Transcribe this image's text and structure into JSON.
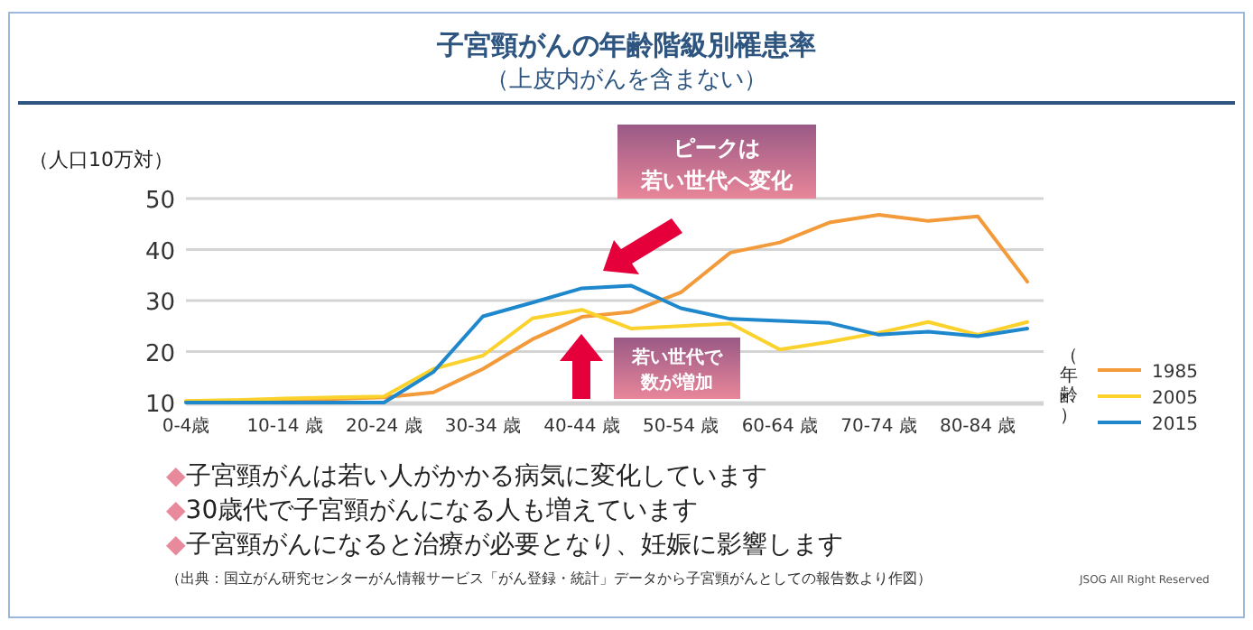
{
  "chart_data": {
    "type": "line",
    "title": "子宮頸がんの年齢階級別罹患率",
    "subtitle": "（上皮内がんを含まない）",
    "ylabel": "（人口10万対）",
    "xlabel": "（年齢）",
    "categories": [
      "0-4歳",
      null,
      "10-14 歳",
      null,
      "20-24 歳",
      null,
      "30-34 歳",
      null,
      "40-44 歳",
      null,
      "50-54 歳",
      null,
      "60-64 歳",
      null,
      "70-74 歳",
      null,
      "80-84 歳",
      null
    ],
    "series": [
      {
        "name": "1985",
        "color": "#f39a3a",
        "values": [
          10.2,
          10.3,
          10.5,
          10.7,
          11,
          12,
          16.6,
          22.4,
          26.8,
          27.8,
          31.6,
          39.4,
          41.4,
          45.3,
          46.8,
          45.6,
          46.5,
          33.7
        ]
      },
      {
        "name": "2005",
        "color": "#fbd12b",
        "values": [
          10.3,
          10.5,
          10.8,
          11,
          11.2,
          16.6,
          19.2,
          26.5,
          28.2,
          24.5,
          25,
          25.5,
          20.4,
          21.9,
          23.7,
          25.8,
          23.3,
          25.8
        ]
      },
      {
        "name": "2015",
        "color": "#1f88cc",
        "values": [
          10,
          10,
          10,
          10,
          10,
          16,
          26.9,
          29.6,
          32.4,
          32.9,
          28.5,
          26.4,
          26,
          25.6,
          23.3,
          23.9,
          23,
          24.5
        ]
      }
    ],
    "ylim": [
      10,
      50
    ],
    "yticks": [
      10,
      20,
      30,
      40,
      50
    ],
    "grid": "y",
    "legend": "right",
    "annotations": [
      "ピークは",
      "若い世代へ変化",
      "若い世代で",
      "数が増加",
      "◆子宮頸がんは若い人がかかる病気に変化しています",
      "◆30歳代で子宮頸がんになる人も増えています",
      "◆子宮頸がんになると治療が必要となり、妊娠に影響します",
      "（出典：国立がん研究センターがん情報サービス「がん登録・統計」データから子宮頸がんとしての報告数より作図）",
      "JSOG All Right Reserved"
    ]
  }
}
